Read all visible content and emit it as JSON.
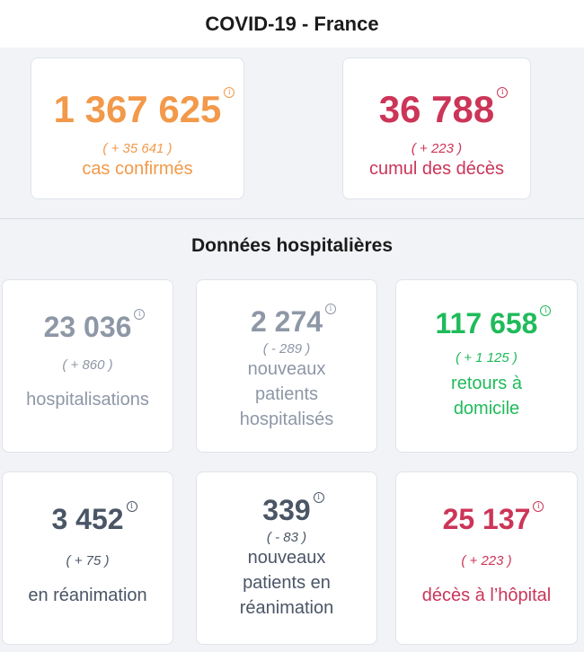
{
  "header": {
    "title": "COVID-19 - France"
  },
  "summary": [
    {
      "value": "1 367 625",
      "delta": "( + 35 641 )",
      "label": "cas confirmés",
      "color": "#f2994a"
    },
    {
      "value": "36 788",
      "delta": "( + 223 )",
      "label": "cumul des décès",
      "color": "#cc3558"
    }
  ],
  "hospital": {
    "title": "Données hospitalières",
    "cards": [
      {
        "value": "23 036",
        "delta": "( + 860 )",
        "label": "hospitalisations",
        "color": "#8e97a6"
      },
      {
        "value": "2 274",
        "delta": "( - 289 )",
        "label": "nouveaux patients hospitalisés",
        "color": "#8e97a6"
      },
      {
        "value": "117 658",
        "delta": "( + 1 125 )",
        "label": "retours à domicile",
        "color": "#1fbb5a"
      },
      {
        "value": "3 452",
        "delta": "( + 75 )",
        "label": "en réanimation",
        "color": "#4a5566"
      },
      {
        "value": "339",
        "delta": "( - 83 )",
        "label": "nouveaux patients en réanimation",
        "color": "#4a5566"
      },
      {
        "value": "25 137",
        "delta": "( + 223 )",
        "label": "décès à l’hôpital",
        "color": "#cc3558"
      }
    ]
  },
  "icons": {
    "info": "info-icon",
    "info_glyph": "i"
  }
}
